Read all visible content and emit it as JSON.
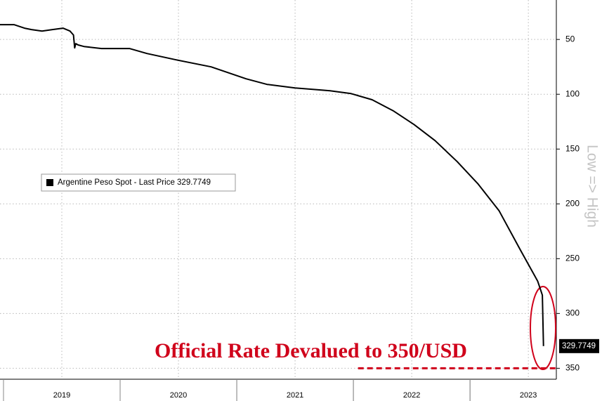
{
  "chart_data": {
    "type": "line",
    "axis_label_right": "Low => High",
    "annotation": "Official Rate Devalued to 350/USD",
    "annotation_color": "#d0021b",
    "reference_line": {
      "value": 350,
      "x_start": 2022.04,
      "color": "#d0021b"
    },
    "invert_y": true,
    "y_axis_side": "right",
    "grid": true,
    "xlim": [
      2018.97,
      2023.74
    ],
    "xticks": [
      {
        "value": 2019.5,
        "label": "2019"
      },
      {
        "value": 2020.5,
        "label": "2020"
      },
      {
        "value": 2021.5,
        "label": "2021"
      },
      {
        "value": 2022.5,
        "label": "2022"
      },
      {
        "value": 2023.5,
        "label": "2023"
      }
    ],
    "ylim": [
      14,
      360
    ],
    "yticks": [
      50,
      100,
      150,
      200,
      250,
      300,
      350
    ],
    "series": [
      {
        "name": "Argentine Peso Spot - Last Price 329.7749",
        "color": "#000000",
        "x": [
          2018.97,
          2019.09,
          2019.18,
          2019.24,
          2019.33,
          2019.42,
          2019.51,
          2019.57,
          2019.6,
          2019.61,
          2019.62,
          2019.64,
          2019.69,
          2019.84,
          2020.08,
          2020.23,
          2020.48,
          2020.78,
          2021.08,
          2021.26,
          2021.5,
          2021.8,
          2021.98,
          2022.16,
          2022.34,
          2022.52,
          2022.7,
          2022.89,
          2023.07,
          2023.25,
          2023.43,
          2023.58,
          2023.6,
          2023.62,
          2023.63
        ],
        "values": [
          36.5,
          36.5,
          39.7,
          41,
          42.3,
          41,
          39.7,
          42.3,
          46,
          57.7,
          53.8,
          55,
          56.4,
          58.3,
          58.3,
          62.8,
          68.6,
          75,
          85.9,
          91,
          94.2,
          96.8,
          99.4,
          105,
          115,
          127.6,
          142.3,
          161.5,
          182,
          206.4,
          241.7,
          270.5,
          276.9,
          283.3,
          329.7749
        ]
      }
    ]
  }
}
